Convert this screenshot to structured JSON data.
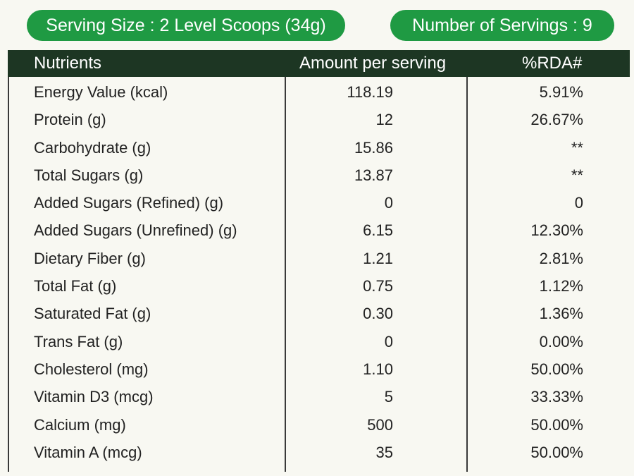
{
  "serving_size": "Serving Size : 2 Level Scoops (34g)",
  "number_of_servings": "Number of Servings : 9",
  "table": {
    "headers": {
      "nutrients": "Nutrients",
      "amount": "Amount per serving",
      "rda": "%RDA#"
    },
    "rows": [
      {
        "nutrient": "Energy Value (kcal)",
        "amount": "118.19",
        "rda": "5.91%"
      },
      {
        "nutrient": "Protein (g)",
        "amount": "12",
        "rda": "26.67%"
      },
      {
        "nutrient": "Carbohydrate (g)",
        "amount": "15.86",
        "rda": "**"
      },
      {
        "nutrient": "Total Sugars (g)",
        "amount": "13.87",
        "rda": "**"
      },
      {
        "nutrient": "Added Sugars (Refined) (g)",
        "amount": "0",
        "rda": "0"
      },
      {
        "nutrient": "Added Sugars (Unrefined) (g)",
        "amount": "6.15",
        "rda": "12.30%"
      },
      {
        "nutrient": "Dietary Fiber (g)",
        "amount": "1.21",
        "rda": "2.81%"
      },
      {
        "nutrient": "Total Fat (g)",
        "amount": "0.75",
        "rda": "1.12%"
      },
      {
        "nutrient": "Saturated Fat (g)",
        "amount": "0.30",
        "rda": "1.36%"
      },
      {
        "nutrient": "Trans Fat (g)",
        "amount": "0",
        "rda": "0.00%"
      },
      {
        "nutrient": "Cholesterol (mg)",
        "amount": "1.10",
        "rda": "50.00%"
      },
      {
        "nutrient": "Vitamin D3 (mcg)",
        "amount": "5",
        "rda": "33.33%"
      },
      {
        "nutrient": "Calcium (mg)",
        "amount": "500",
        "rda": "50.00%"
      },
      {
        "nutrient": "Vitamin A (mcg)",
        "amount": "35",
        "rda": "50.00%"
      }
    ]
  },
  "colors": {
    "pill_green": "#1f9a43",
    "header_dark_green": "#1d3623",
    "background": "#f8f8f2"
  }
}
